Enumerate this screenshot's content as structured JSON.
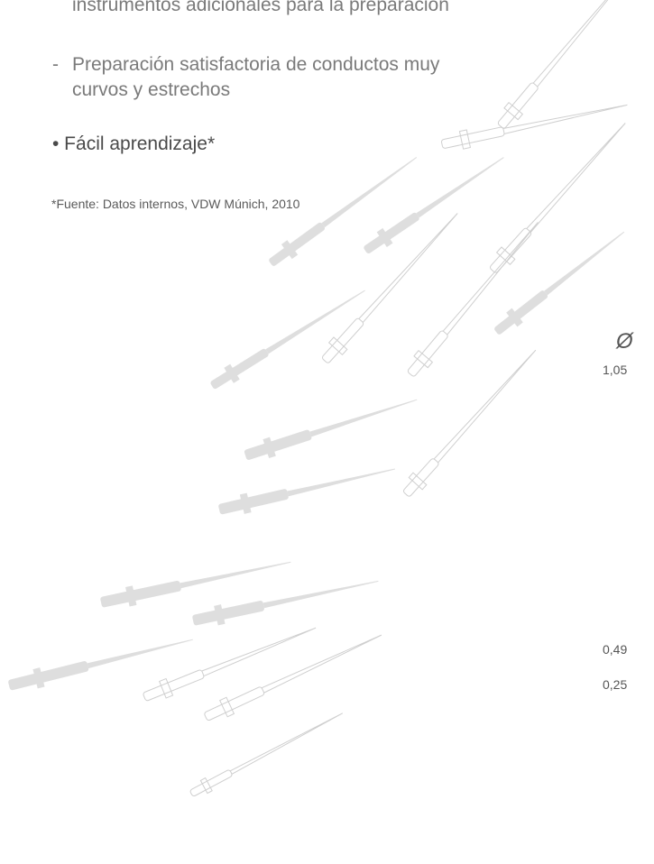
{
  "content": {
    "line_cut": "instrumentos adicionales para la preparación",
    "item_dash": "-",
    "item_line1": "Preparación satisfactoria de conductos muy",
    "item_line2": "curvos y estrechos",
    "bullet": "• Fácil aprendizaje*",
    "footnote": "*Fuente: Datos internos, VDW Múnich, 2010"
  },
  "side_scale": {
    "symbol": "Ø",
    "values": [
      "1,05",
      "0,49",
      "0,25"
    ]
  },
  "colors": {
    "file_fill": "#dedede",
    "file_outline": "#cfcfcf"
  }
}
